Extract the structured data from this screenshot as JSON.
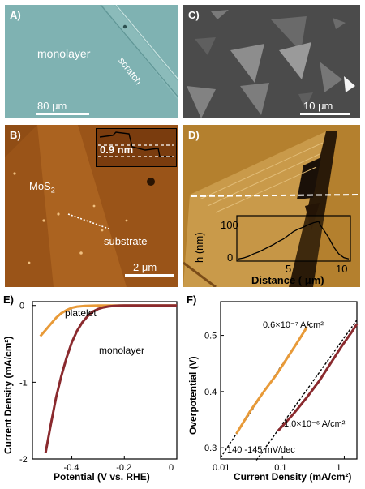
{
  "panels": {
    "a": {
      "label": "A)",
      "main_text": "monolayer",
      "scratch_text": "scratch",
      "scale": "80 μm",
      "color": "#7fb2b2"
    },
    "b": {
      "label": "B)",
      "material": "MoS",
      "material_sub": "2",
      "substrate": "substrate",
      "scale": "2 μm",
      "inset_text": "0.9 nm",
      "color": "#9a5418"
    },
    "c": {
      "label": "C)",
      "scale": "10 μm",
      "color": "#4e4e4e"
    },
    "d": {
      "label": "D)",
      "color": "#b4802e"
    }
  },
  "chart_data": [
    {
      "panel": "D",
      "type": "line",
      "xlabel": "Distance ( μm)",
      "ylabel": "h (nm)",
      "xticks": [
        "5",
        "10"
      ],
      "yticks": [
        "100",
        "0"
      ],
      "xlim": [
        0,
        11
      ],
      "ylim": [
        0,
        130
      ],
      "series": [
        {
          "x": [
            0,
            0.5,
            1,
            1.5,
            2,
            2.5,
            3,
            3.5,
            4,
            4.5,
            5,
            5.5,
            6,
            6.5,
            7,
            7.5,
            8,
            8.2,
            8.5,
            9,
            9.5,
            10,
            10.5,
            11
          ],
          "y": [
            2,
            5,
            10,
            18,
            24,
            32,
            40,
            48,
            58,
            66,
            78,
            90,
            98,
            104,
            112,
            118,
            122,
            108,
            95,
            70,
            40,
            18,
            6,
            2
          ]
        }
      ]
    },
    {
      "panel": "E",
      "type": "line",
      "label": "E)",
      "xlabel": "Potential (V vs. RHE)",
      "ylabel": "Current Density (mA/cm²)",
      "xticks": [
        "-0.4",
        "-0.2",
        "0"
      ],
      "yticks": [
        "0",
        "-1",
        "-2"
      ],
      "xlim": [
        -0.55,
        0
      ],
      "ylim": [
        -2,
        0.05
      ],
      "series": [
        {
          "name": "platelet",
          "color": "#e89a38",
          "x": [
            -0.52,
            -0.5,
            -0.48,
            -0.46,
            -0.44,
            -0.42,
            -0.4,
            -0.38,
            -0.35,
            -0.3,
            -0.2,
            0
          ],
          "y": [
            -0.4,
            -0.32,
            -0.24,
            -0.16,
            -0.1,
            -0.06,
            -0.03,
            -0.015,
            -0.005,
            0,
            0,
            0
          ]
        },
        {
          "name": "monolayer",
          "color": "#8a2a2e",
          "x": [
            -0.5,
            -0.48,
            -0.46,
            -0.44,
            -0.42,
            -0.4,
            -0.38,
            -0.36,
            -0.34,
            -0.32,
            -0.3,
            -0.28,
            -0.26,
            -0.24,
            -0.22,
            -0.2,
            0
          ],
          "y": [
            -1.92,
            -1.55,
            -1.2,
            -0.92,
            -0.68,
            -0.48,
            -0.33,
            -0.22,
            -0.14,
            -0.08,
            -0.045,
            -0.025,
            -0.012,
            -0.005,
            -0.002,
            0,
            0
          ]
        }
      ]
    },
    {
      "panel": "F",
      "type": "line",
      "label": "F)",
      "xlabel": "Current Density (mA/cm²)",
      "ylabel": "Overpotential (V)",
      "xscale": "log",
      "xticks": [
        "0.01",
        "0.1",
        "1"
      ],
      "yticks": [
        "0.5",
        "0.4",
        "0.3"
      ],
      "xlim": [
        0.01,
        1.6
      ],
      "ylim": [
        0.28,
        0.56
      ],
      "annotations": [
        "0.6×10⁻⁷ A/cm²",
        "1.0×10⁻⁶ A/cm²",
        "140 -145 mV/dec"
      ],
      "series": [
        {
          "name": "platelet",
          "color": "#e89a38",
          "x": [
            0.018,
            0.03,
            0.05,
            0.08,
            0.12,
            0.18,
            0.25
          ],
          "y": [
            0.325,
            0.365,
            0.4,
            0.43,
            0.46,
            0.49,
            0.515
          ]
        },
        {
          "name": "monolayer",
          "color": "#8a2a2e",
          "x": [
            0.085,
            0.15,
            0.25,
            0.4,
            0.6,
            0.9,
            1.3,
            1.6
          ],
          "y": [
            0.33,
            0.36,
            0.39,
            0.42,
            0.45,
            0.48,
            0.505,
            0.52
          ]
        }
      ]
    }
  ]
}
